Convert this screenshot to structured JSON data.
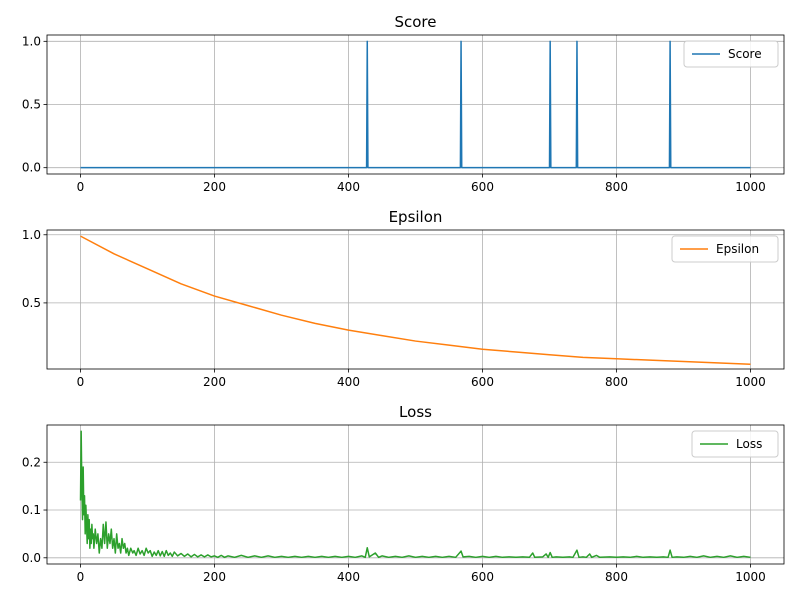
{
  "chart_data": [
    {
      "type": "line",
      "title": "Score",
      "xlabel": "",
      "ylabel": "",
      "xlim": [
        -50,
        1050
      ],
      "ylim": [
        -0.05,
        1.05
      ],
      "xticks": [
        "0",
        "200",
        "400",
        "600",
        "800",
        "1000"
      ],
      "yticks": [
        "0.0",
        "0.5",
        "1.0"
      ],
      "grid": true,
      "legend_position": "top-right",
      "color": "#1f77b4",
      "series": [
        {
          "name": "Score",
          "points": [
            [
              0,
              0
            ],
            [
              427,
              0
            ],
            [
              428,
              1
            ],
            [
              429,
              0
            ],
            [
              567,
              0
            ],
            [
              568,
              1
            ],
            [
              569,
              0
            ],
            [
              700,
              0
            ],
            [
              701,
              1
            ],
            [
              702,
              0
            ],
            [
              740,
              0
            ],
            [
              741,
              1
            ],
            [
              742,
              0
            ],
            [
              879,
              0
            ],
            [
              880,
              1
            ],
            [
              881,
              0
            ],
            [
              1000,
              0
            ]
          ]
        }
      ]
    },
    {
      "type": "line",
      "title": "Epsilon",
      "xlabel": "",
      "ylabel": "",
      "xlim": [
        -50,
        1050
      ],
      "ylim": [
        0.015,
        1.035
      ],
      "xticks": [
        "0",
        "200",
        "400",
        "600",
        "800",
        "1000"
      ],
      "yticks": [
        "0.5",
        "1.0"
      ],
      "grid": true,
      "legend_position": "top-right",
      "color": "#ff7f0e",
      "series": [
        {
          "name": "Epsilon",
          "points": [
            [
              0,
              0.99
            ],
            [
              50,
              0.86
            ],
            [
              100,
              0.75
            ],
            [
              150,
              0.64
            ],
            [
              200,
              0.55
            ],
            [
              250,
              0.48
            ],
            [
              300,
              0.41
            ],
            [
              350,
              0.35
            ],
            [
              400,
              0.3
            ],
            [
              450,
              0.26
            ],
            [
              500,
              0.22
            ],
            [
              550,
              0.19
            ],
            [
              600,
              0.16
            ],
            [
              650,
              0.14
            ],
            [
              700,
              0.12
            ],
            [
              750,
              0.1
            ],
            [
              800,
              0.09
            ],
            [
              850,
              0.08
            ],
            [
              900,
              0.07
            ],
            [
              950,
              0.06
            ],
            [
              1000,
              0.05
            ]
          ]
        }
      ]
    },
    {
      "type": "line",
      "title": "Loss",
      "xlabel": "",
      "ylabel": "",
      "xlim": [
        -50,
        1050
      ],
      "ylim": [
        -0.013,
        0.278
      ],
      "xticks": [
        "0",
        "200",
        "400",
        "600",
        "800",
        "1000"
      ],
      "yticks": [
        "0.0",
        "0.1",
        "0.2"
      ],
      "grid": true,
      "legend_position": "top-right",
      "color": "#2ca02c",
      "series": [
        {
          "name": "Loss",
          "points": [
            [
              0,
              0.12
            ],
            [
              1,
              0.265
            ],
            [
              2,
              0.15
            ],
            [
              3,
              0.08
            ],
            [
              4,
              0.19
            ],
            [
              5,
              0.09
            ],
            [
              6,
              0.13
            ],
            [
              7,
              0.05
            ],
            [
              8,
              0.11
            ],
            [
              9,
              0.07
            ],
            [
              10,
              0.03
            ],
            [
              11,
              0.09
            ],
            [
              12,
              0.04
            ],
            [
              13,
              0.08
            ],
            [
              14,
              0.02
            ],
            [
              15,
              0.06
            ],
            [
              16,
              0.03
            ],
            [
              17,
              0.07
            ],
            [
              18,
              0.04
            ],
            [
              19,
              0.05
            ],
            [
              20,
              0.02
            ],
            [
              22,
              0.06
            ],
            [
              24,
              0.03
            ],
            [
              26,
              0.05
            ],
            [
              28,
              0.01
            ],
            [
              30,
              0.04
            ],
            [
              32,
              0.02
            ],
            [
              34,
              0.07
            ],
            [
              36,
              0.03
            ],
            [
              38,
              0.075
            ],
            [
              40,
              0.02
            ],
            [
              42,
              0.05
            ],
            [
              44,
              0.03
            ],
            [
              46,
              0.06
            ],
            [
              48,
              0.02
            ],
            [
              50,
              0.04
            ],
            [
              52,
              0.01
            ],
            [
              54,
              0.05
            ],
            [
              56,
              0.02
            ],
            [
              58,
              0.03
            ],
            [
              60,
              0.01
            ],
            [
              62,
              0.04
            ],
            [
              64,
              0.02
            ],
            [
              66,
              0.03
            ],
            [
              68,
              0.01
            ],
            [
              70,
              0.02
            ],
            [
              72,
              0.005
            ],
            [
              75,
              0.02
            ],
            [
              78,
              0.01
            ],
            [
              80,
              0.015
            ],
            [
              83,
              0.005
            ],
            [
              86,
              0.02
            ],
            [
              89,
              0.008
            ],
            [
              92,
              0.015
            ],
            [
              95,
              0.005
            ],
            [
              98,
              0.02
            ],
            [
              101,
              0.01
            ],
            [
              104,
              0.015
            ],
            [
              107,
              0.003
            ],
            [
              110,
              0.012
            ],
            [
              113,
              0.005
            ],
            [
              116,
              0.015
            ],
            [
              119,
              0.004
            ],
            [
              122,
              0.013
            ],
            [
              125,
              0.003
            ],
            [
              128,
              0.015
            ],
            [
              131,
              0.005
            ],
            [
              134,
              0.01
            ],
            [
              137,
              0.003
            ],
            [
              140,
              0.012
            ],
            [
              145,
              0.004
            ],
            [
              150,
              0.009
            ],
            [
              155,
              0.003
            ],
            [
              160,
              0.008
            ],
            [
              165,
              0.002
            ],
            [
              170,
              0.007
            ],
            [
              175,
              0.002
            ],
            [
              180,
              0.006
            ],
            [
              185,
              0.002
            ],
            [
              190,
              0.006
            ],
            [
              195,
              0.002
            ],
            [
              200,
              0.004
            ],
            [
              205,
              0.001
            ],
            [
              210,
              0.005
            ],
            [
              215,
              0.001
            ],
            [
              220,
              0.004
            ],
            [
              230,
              0.001
            ],
            [
              240,
              0.005
            ],
            [
              250,
              0.001
            ],
            [
              260,
              0.004
            ],
            [
              270,
              0.001
            ],
            [
              280,
              0.004
            ],
            [
              290,
              0.001
            ],
            [
              300,
              0.003
            ],
            [
              310,
              0.001
            ],
            [
              320,
              0.003
            ],
            [
              330,
              0.001
            ],
            [
              340,
              0.003
            ],
            [
              350,
              0.001
            ],
            [
              360,
              0.003
            ],
            [
              370,
              0.001
            ],
            [
              380,
              0.003
            ],
            [
              390,
              0.001
            ],
            [
              400,
              0.003
            ],
            [
              410,
              0.001
            ],
            [
              420,
              0.004
            ],
            [
              425,
              0.001
            ],
            [
              428,
              0.021
            ],
            [
              431,
              0.002
            ],
            [
              440,
              0.01
            ],
            [
              445,
              0.001
            ],
            [
              450,
              0.004
            ],
            [
              460,
              0.001
            ],
            [
              470,
              0.003
            ],
            [
              480,
              0.001
            ],
            [
              490,
              0.004
            ],
            [
              500,
              0.001
            ],
            [
              510,
              0.003
            ],
            [
              520,
              0.001
            ],
            [
              530,
              0.003
            ],
            [
              540,
              0.001
            ],
            [
              550,
              0.003
            ],
            [
              560,
              0.001
            ],
            [
              568,
              0.014
            ],
            [
              571,
              0.002
            ],
            [
              580,
              0.003
            ],
            [
              590,
              0.001
            ],
            [
              600,
              0.003
            ],
            [
              610,
              0.001
            ],
            [
              620,
              0.003
            ],
            [
              630,
              0.001
            ],
            [
              640,
              0.002
            ],
            [
              650,
              0.001
            ],
            [
              660,
              0.002
            ],
            [
              670,
              0.001
            ],
            [
              675,
              0.01
            ],
            [
              678,
              0.001
            ],
            [
              690,
              0.002
            ],
            [
              695,
              0.008
            ],
            [
              698,
              0.001
            ],
            [
              701,
              0.011
            ],
            [
              704,
              0.001
            ],
            [
              710,
              0.002
            ],
            [
              720,
              0.001
            ],
            [
              730,
              0.002
            ],
            [
              735,
              0.001
            ],
            [
              741,
              0.016
            ],
            [
              744,
              0.001
            ],
            [
              750,
              0.002
            ],
            [
              755,
              0.001
            ],
            [
              760,
              0.008
            ],
            [
              763,
              0.001
            ],
            [
              770,
              0.005
            ],
            [
              775,
              0.001
            ],
            [
              790,
              0.002
            ],
            [
              800,
              0.001
            ],
            [
              810,
              0.002
            ],
            [
              820,
              0.001
            ],
            [
              830,
              0.003
            ],
            [
              840,
              0.001
            ],
            [
              850,
              0.002
            ],
            [
              860,
              0.001
            ],
            [
              870,
              0.002
            ],
            [
              877,
              0.001
            ],
            [
              880,
              0.016
            ],
            [
              883,
              0.001
            ],
            [
              890,
              0.002
            ],
            [
              900,
              0.001
            ],
            [
              910,
              0.003
            ],
            [
              920,
              0.001
            ],
            [
              930,
              0.004
            ],
            [
              940,
              0.001
            ],
            [
              950,
              0.003
            ],
            [
              960,
              0.001
            ],
            [
              970,
              0.004
            ],
            [
              980,
              0.001
            ],
            [
              990,
              0.003
            ],
            [
              1000,
              0.001
            ]
          ]
        }
      ]
    }
  ]
}
